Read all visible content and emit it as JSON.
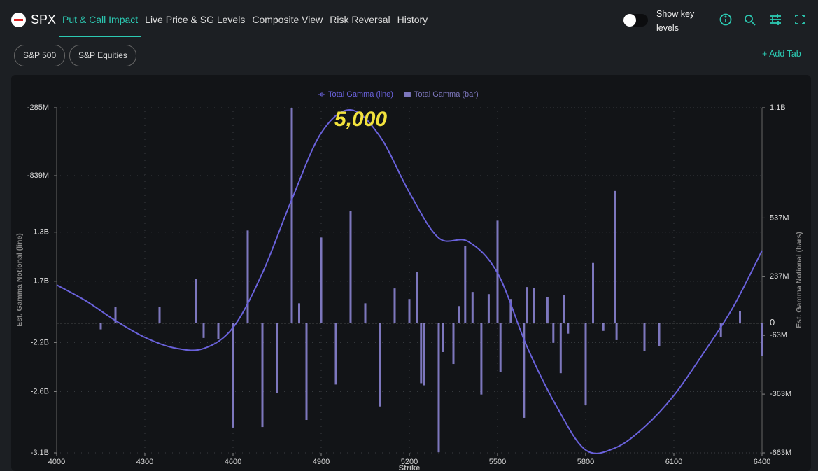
{
  "header": {
    "symbol": "SPX",
    "tabs": [
      "Put & Call Impact",
      "Live Price & SG Levels",
      "Composite View",
      "Risk Reversal",
      "History"
    ],
    "toggle_label": "Show key levels"
  },
  "subtabs": {
    "buttons": [
      "S&P 500",
      "S&P Equities"
    ],
    "add": "+ Add Tab"
  },
  "chart_data": {
    "type": "combo",
    "annotation": "5,000",
    "xlabel": "Strike",
    "ylabel": "Est. Gamma Notional (line)",
    "y2label": "Est. Gamma Notional (bars)",
    "xlim": [
      4000,
      6400
    ],
    "xticks": [
      4000,
      4300,
      4600,
      4900,
      5200,
      5500,
      5800,
      6100,
      6400
    ],
    "ylim": [
      -3100000000,
      -285000000
    ],
    "yticks": [
      {
        "value": -285000000,
        "label": "-285M"
      },
      {
        "value": -839000000,
        "label": "-839M"
      },
      {
        "value": -1300000000,
        "label": "-1.3B"
      },
      {
        "value": -1700000000,
        "label": "-1.7B"
      },
      {
        "value": -2200000000,
        "label": "-2.2B"
      },
      {
        "value": -2600000000,
        "label": "-2.6B"
      },
      {
        "value": -3100000000,
        "label": "-3.1B"
      }
    ],
    "y2lim": [
      -663000000,
      1100000000
    ],
    "y2ticks": [
      {
        "value": 1100000000,
        "label": "1.1B"
      },
      {
        "value": 537000000,
        "label": "537M"
      },
      {
        "value": 237000000,
        "label": "237M"
      },
      0,
      {
        "value": -63000000,
        "label": "-63M"
      },
      {
        "value": -363000000,
        "label": "-363M"
      },
      {
        "value": -663000000,
        "label": "-663M"
      }
    ],
    "grid": true,
    "series": [
      {
        "name": "Total Gamma (line)",
        "type": "line",
        "color": "#6a62dc",
        "x": [
          4000,
          4100,
          4200,
          4300,
          4400,
          4500,
          4600,
          4700,
          4800,
          4900,
          5000,
          5100,
          5200,
          5300,
          5400,
          5500,
          5600,
          5700,
          5800,
          5900,
          6000,
          6100,
          6200,
          6300,
          6400
        ],
        "values": [
          -1730000000,
          -1861000000,
          -2021000000,
          -2158000000,
          -2244000000,
          -2249000000,
          -2078000000,
          -1633000000,
          -1033000000,
          -491000000,
          -302000000,
          -519000000,
          -976000000,
          -1347000000,
          -1376000000,
          -1633000000,
          -2232000000,
          -2717000000,
          -3077000000,
          -3060000000,
          -2889000000,
          -2632000000,
          -2289000000,
          -1918000000,
          -1450000000
        ]
      },
      {
        "name": "Total Gamma (bar)",
        "type": "bar",
        "axis": "y2",
        "color": "#7d77bd",
        "x": [
          4150,
          4200,
          4350,
          4475,
          4500,
          4550,
          4600,
          4650,
          4700,
          4750,
          4800,
          4825,
          4850,
          4900,
          4950,
          5000,
          5050,
          5100,
          5150,
          5200,
          5225,
          5240,
          5250,
          5300,
          5315,
          5350,
          5370,
          5390,
          5415,
          5445,
          5470,
          5500,
          5510,
          5545,
          5590,
          5600,
          5625,
          5670,
          5690,
          5715,
          5725,
          5740,
          5800,
          5825,
          5860,
          5900,
          5905,
          6000,
          6050,
          6260,
          6325,
          6400
        ],
        "values": [
          -32000000,
          83000000,
          83000000,
          227000000,
          -76000000,
          -83000000,
          -534000000,
          473000000,
          -531000000,
          -357000000,
          1100000000,
          101000000,
          -495000000,
          437000000,
          -314000000,
          574000000,
          101000000,
          -426000000,
          177000000,
          123000000,
          260000000,
          -307000000,
          -318000000,
          -660000000,
          -148000000,
          -209000000,
          87000000,
          393000000,
          159000000,
          -365000000,
          148000000,
          523000000,
          -249000000,
          123000000,
          -484000000,
          184000000,
          180000000,
          134000000,
          -101000000,
          -256000000,
          144000000,
          -54000000,
          -419000000,
          307000000,
          -40000000,
          675000000,
          -87000000,
          -141000000,
          -119000000,
          -72000000,
          61000000,
          -166000000
        ]
      }
    ]
  }
}
